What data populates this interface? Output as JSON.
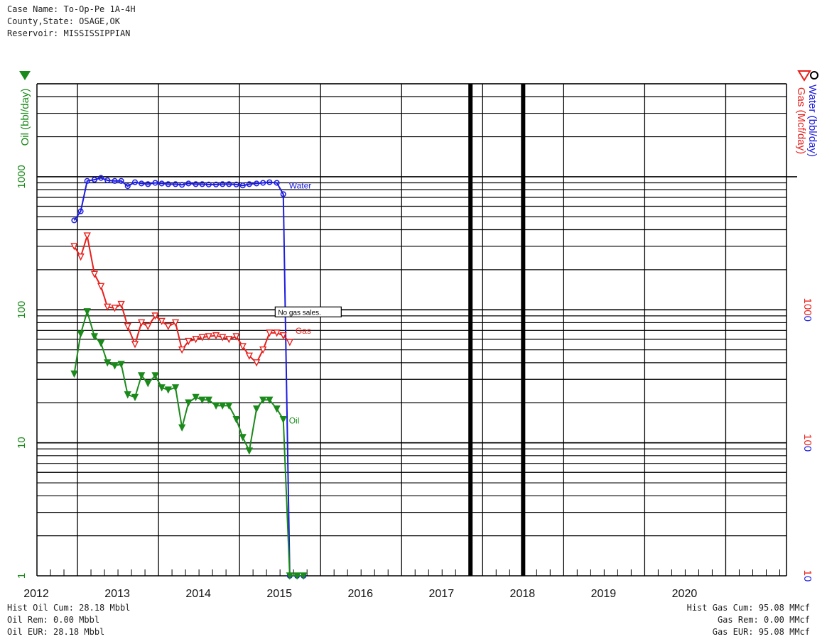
{
  "header": {
    "case_name": "Case Name: To-Op-Pe 1A-4H",
    "county_state": "County,State: OSAGE,OK",
    "reservoir": "Reservoir: MISSISSIPPIAN"
  },
  "footer_left": {
    "oil_cum": "Hist Oil Cum: 28.18 Mbbl",
    "oil_rem": "Oil Rem: 0.00 Mbbl",
    "oil_eur": "Oil EUR: 28.18 Mbbl"
  },
  "footer_right": {
    "gas_cum": "Hist Gas Cum: 95.08 MMcf",
    "gas_rem": "Gas Rem: 0.00 MMcf",
    "gas_eur": "Gas EUR: 95.08 MMcf"
  },
  "colors": {
    "oil": "#1a8a1a",
    "gas": "#e8201c",
    "water": "#1c1ce0",
    "grid": "#000000"
  },
  "chart_data": {
    "type": "line",
    "x_axis": {
      "range": [
        2011.5,
        2020.75
      ],
      "tick_labels": [
        "2012",
        "2013",
        "2014",
        "2015",
        "2016",
        "2017",
        "2018",
        "2019",
        "2020"
      ],
      "emphasized_lines": [
        2016.85,
        2017.5
      ]
    },
    "y_left": {
      "label": "Oil (bbl/day)",
      "scale": "log",
      "range": [
        1,
        5000
      ],
      "tick_labels": [
        "1",
        "10",
        "100",
        "1000"
      ]
    },
    "y_right": {
      "labels": [
        "Water (bbl/day)",
        "Gas (Mcf/day)"
      ],
      "scale": "log",
      "range": [
        10,
        50000
      ],
      "tick_labels": [
        "10",
        "100",
        "1000"
      ]
    },
    "annotation": "No gas sales.",
    "series": [
      {
        "name": "Water",
        "marker": "circle",
        "points": [
          [
            2011.96,
            470
          ],
          [
            2012.04,
            550
          ],
          [
            2012.12,
            930
          ],
          [
            2012.21,
            950
          ],
          [
            2012.29,
            980
          ],
          [
            2012.37,
            940
          ],
          [
            2012.46,
            930
          ],
          [
            2012.54,
            930
          ],
          [
            2012.62,
            850
          ],
          [
            2012.71,
            910
          ],
          [
            2012.79,
            890
          ],
          [
            2012.87,
            880
          ],
          [
            2012.96,
            900
          ],
          [
            2013.04,
            890
          ],
          [
            2013.12,
            880
          ],
          [
            2013.21,
            880
          ],
          [
            2013.29,
            870
          ],
          [
            2013.37,
            890
          ],
          [
            2013.46,
            880
          ],
          [
            2013.54,
            880
          ],
          [
            2013.62,
            875
          ],
          [
            2013.71,
            875
          ],
          [
            2013.79,
            880
          ],
          [
            2013.87,
            880
          ],
          [
            2013.96,
            875
          ],
          [
            2014.04,
            860
          ],
          [
            2014.12,
            880
          ],
          [
            2014.21,
            890
          ],
          [
            2014.29,
            900
          ],
          [
            2014.37,
            910
          ],
          [
            2014.46,
            900
          ],
          [
            2014.54,
            740
          ],
          [
            2014.62,
            1
          ],
          [
            2014.71,
            1
          ],
          [
            2014.79,
            1
          ]
        ]
      },
      {
        "name": "Gas",
        "marker": "triangle-down-open",
        "points": [
          [
            2011.96,
            300
          ],
          [
            2012.04,
            250
          ],
          [
            2012.12,
            360
          ],
          [
            2012.21,
            185
          ],
          [
            2012.29,
            150
          ],
          [
            2012.37,
            105
          ],
          [
            2012.46,
            103
          ],
          [
            2012.54,
            110
          ],
          [
            2012.62,
            75
          ],
          [
            2012.71,
            55
          ],
          [
            2012.79,
            80
          ],
          [
            2012.87,
            75
          ],
          [
            2012.96,
            90
          ],
          [
            2013.04,
            82
          ],
          [
            2013.12,
            75
          ],
          [
            2013.21,
            80
          ],
          [
            2013.29,
            50
          ],
          [
            2013.37,
            58
          ],
          [
            2013.46,
            60
          ],
          [
            2013.54,
            62
          ],
          [
            2013.62,
            63
          ],
          [
            2013.71,
            64
          ],
          [
            2013.79,
            62
          ],
          [
            2013.87,
            60
          ],
          [
            2013.96,
            63
          ],
          [
            2014.04,
            53
          ],
          [
            2014.12,
            45
          ],
          [
            2014.21,
            40
          ],
          [
            2014.29,
            50
          ],
          [
            2014.37,
            67
          ],
          [
            2014.46,
            67
          ],
          [
            2014.54,
            64
          ],
          [
            2014.62,
            57
          ]
        ]
      },
      {
        "name": "Oil",
        "marker": "triangle-down-filled",
        "points": [
          [
            2011.96,
            33
          ],
          [
            2012.04,
            66
          ],
          [
            2012.12,
            97
          ],
          [
            2012.21,
            63
          ],
          [
            2012.29,
            56
          ],
          [
            2012.37,
            40
          ],
          [
            2012.46,
            38
          ],
          [
            2012.54,
            39
          ],
          [
            2012.62,
            23
          ],
          [
            2012.71,
            22
          ],
          [
            2012.79,
            32
          ],
          [
            2012.87,
            28
          ],
          [
            2012.96,
            32
          ],
          [
            2013.04,
            26
          ],
          [
            2013.12,
            25
          ],
          [
            2013.21,
            26
          ],
          [
            2013.29,
            13
          ],
          [
            2013.37,
            20
          ],
          [
            2013.46,
            22
          ],
          [
            2013.54,
            21
          ],
          [
            2013.62,
            21
          ],
          [
            2013.71,
            19
          ],
          [
            2013.79,
            19
          ],
          [
            2013.87,
            19
          ],
          [
            2013.96,
            15
          ],
          [
            2014.04,
            11
          ],
          [
            2014.12,
            8.7
          ],
          [
            2014.21,
            18
          ],
          [
            2014.29,
            21
          ],
          [
            2014.37,
            21
          ],
          [
            2014.46,
            18
          ],
          [
            2014.54,
            15
          ],
          [
            2014.62,
            1
          ],
          [
            2014.71,
            1
          ],
          [
            2014.79,
            1
          ]
        ]
      }
    ]
  }
}
